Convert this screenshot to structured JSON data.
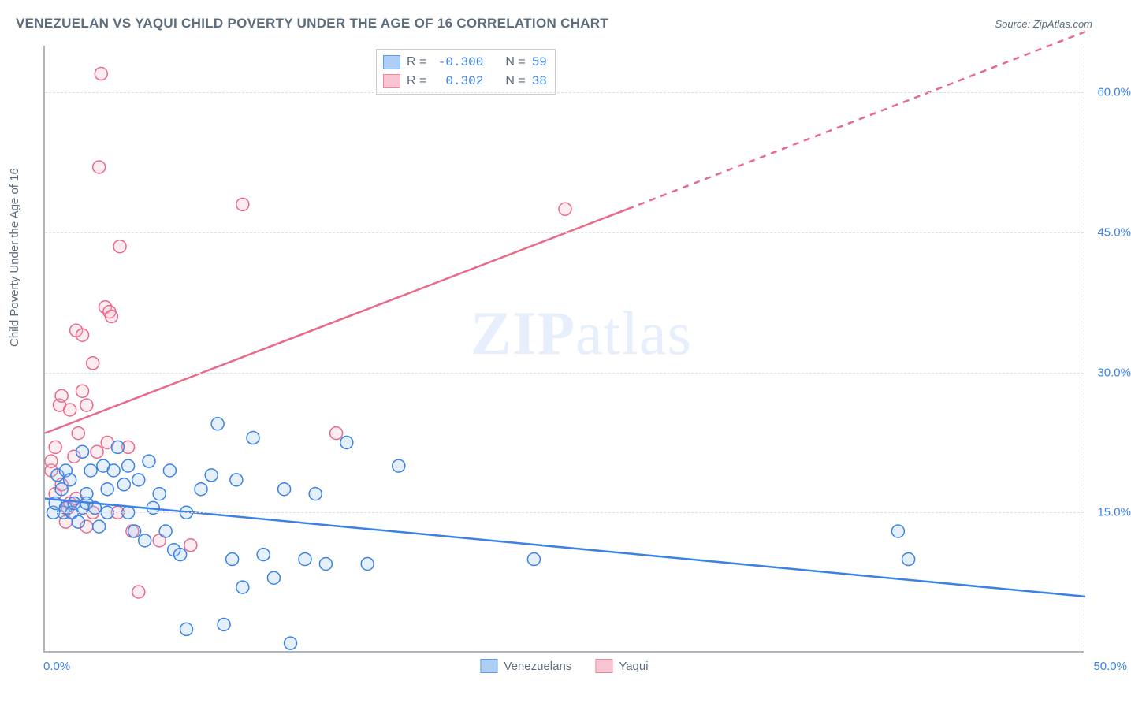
{
  "title": "VENEZUELAN VS YAQUI CHILD POVERTY UNDER THE AGE OF 16 CORRELATION CHART",
  "source_label": "Source: ZipAtlas.com",
  "ylabel": "Child Poverty Under the Age of 16",
  "watermark": {
    "bold": "ZIP",
    "rest": "atlas"
  },
  "chart": {
    "type": "scatter",
    "background_color": "#ffffff",
    "grid_color": "#e0e0e0",
    "axis_color": "#b0b6bd",
    "tick_color": "#3b82e6",
    "label_color": "#5d6d7e",
    "xlim": [
      0,
      50
    ],
    "ylim": [
      0,
      65
    ],
    "xticks": [
      0,
      50
    ],
    "xtick_labels": [
      "0.0%",
      "50.0%"
    ],
    "yticks": [
      15,
      30,
      45,
      60
    ],
    "ytick_labels": [
      "15.0%",
      "30.0%",
      "45.0%",
      "60.0%"
    ],
    "marker_radius": 8,
    "marker_stroke_width": 1.5,
    "marker_fill_opacity": 0.25,
    "line_width": 2.5,
    "series": [
      {
        "name": "Venezuelans",
        "color_stroke": "#3b82e6",
        "color_fill": "#9cc3f4",
        "R": "-0.300",
        "N": "59",
        "trend": {
          "x1": 0,
          "y1": 16.5,
          "x2": 50,
          "y2": 6.0,
          "dashed": false
        },
        "points": [
          [
            0.4,
            15.0
          ],
          [
            0.5,
            16.0
          ],
          [
            0.6,
            19.0
          ],
          [
            0.8,
            17.5
          ],
          [
            0.9,
            15.0
          ],
          [
            1.0,
            19.5
          ],
          [
            1.0,
            15.5
          ],
          [
            1.2,
            18.5
          ],
          [
            1.3,
            15.0
          ],
          [
            1.4,
            16.0
          ],
          [
            1.6,
            14.0
          ],
          [
            1.8,
            21.5
          ],
          [
            1.8,
            15.5
          ],
          [
            2.0,
            16.0
          ],
          [
            2.0,
            17.0
          ],
          [
            2.2,
            19.5
          ],
          [
            2.4,
            15.5
          ],
          [
            2.6,
            13.5
          ],
          [
            2.8,
            20.0
          ],
          [
            3.0,
            15.0
          ],
          [
            3.0,
            17.5
          ],
          [
            3.3,
            19.5
          ],
          [
            3.5,
            22.0
          ],
          [
            3.8,
            18.0
          ],
          [
            4.0,
            15.0
          ],
          [
            4.0,
            20.0
          ],
          [
            4.3,
            13.0
          ],
          [
            4.5,
            18.5
          ],
          [
            4.8,
            12.0
          ],
          [
            5.0,
            20.5
          ],
          [
            5.2,
            15.5
          ],
          [
            5.5,
            17.0
          ],
          [
            5.8,
            13.0
          ],
          [
            6.0,
            19.5
          ],
          [
            6.2,
            11.0
          ],
          [
            6.5,
            10.5
          ],
          [
            6.8,
            15.0
          ],
          [
            6.8,
            2.5
          ],
          [
            7.5,
            17.5
          ],
          [
            8.0,
            19.0
          ],
          [
            8.3,
            24.5
          ],
          [
            8.6,
            3.0
          ],
          [
            9.0,
            10.0
          ],
          [
            9.2,
            18.5
          ],
          [
            9.5,
            7.0
          ],
          [
            10.0,
            23.0
          ],
          [
            10.5,
            10.5
          ],
          [
            11.0,
            8.0
          ],
          [
            11.5,
            17.5
          ],
          [
            11.8,
            1.0
          ],
          [
            12.5,
            10.0
          ],
          [
            13.0,
            17.0
          ],
          [
            13.5,
            9.5
          ],
          [
            14.5,
            22.5
          ],
          [
            15.5,
            9.5
          ],
          [
            17.0,
            20.0
          ],
          [
            23.5,
            10.0
          ],
          [
            41.0,
            13.0
          ],
          [
            41.5,
            10.0
          ]
        ]
      },
      {
        "name": "Yaqui",
        "color_stroke": "#e86a8b",
        "color_fill": "#f6b7c6",
        "R": "0.302",
        "N": "38",
        "trend": {
          "x1": 0,
          "y1": 23.5,
          "x2": 28,
          "y2": 47.5,
          "dashed": false
        },
        "trend_ext": {
          "x1": 28,
          "y1": 47.5,
          "x2": 50,
          "y2": 66.5,
          "dashed": true
        },
        "points": [
          [
            0.3,
            19.5
          ],
          [
            0.3,
            20.5
          ],
          [
            0.5,
            22.0
          ],
          [
            0.5,
            17.0
          ],
          [
            0.7,
            26.5
          ],
          [
            0.8,
            27.5
          ],
          [
            0.8,
            18.0
          ],
          [
            1.0,
            14.0
          ],
          [
            1.1,
            15.5
          ],
          [
            1.2,
            26.0
          ],
          [
            1.2,
            16.0
          ],
          [
            1.4,
            21.0
          ],
          [
            1.5,
            16.5
          ],
          [
            1.5,
            34.5
          ],
          [
            1.6,
            23.5
          ],
          [
            1.8,
            34.0
          ],
          [
            1.8,
            28.0
          ],
          [
            2.0,
            13.5
          ],
          [
            2.0,
            26.5
          ],
          [
            2.3,
            15.0
          ],
          [
            2.3,
            31.0
          ],
          [
            2.5,
            21.5
          ],
          [
            2.6,
            52.0
          ],
          [
            2.7,
            62.0
          ],
          [
            2.9,
            37.0
          ],
          [
            3.0,
            22.5
          ],
          [
            3.1,
            36.5
          ],
          [
            3.2,
            36.0
          ],
          [
            3.5,
            15.0
          ],
          [
            3.6,
            43.5
          ],
          [
            4.0,
            22.0
          ],
          [
            4.2,
            13.0
          ],
          [
            4.5,
            6.5
          ],
          [
            5.5,
            12.0
          ],
          [
            7.0,
            11.5
          ],
          [
            9.5,
            48.0
          ],
          [
            14.0,
            23.5
          ],
          [
            25.0,
            47.5
          ]
        ]
      }
    ],
    "stats_box": {
      "r_label": "R =",
      "n_label": "N ="
    },
    "bottom_legend": [
      "Venezuelans",
      "Yaqui"
    ]
  }
}
